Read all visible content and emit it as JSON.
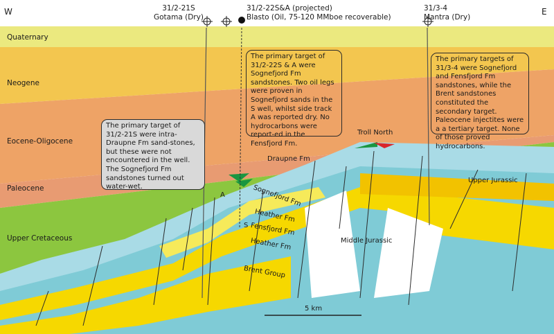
{
  "orientation": {
    "west": "W",
    "east": "E"
  },
  "stratigraphy": [
    {
      "label": "Quaternary",
      "color": "#ebe97f"
    },
    {
      "label": "Neogene",
      "color": "#f3c64f"
    },
    {
      "label": "Eocene-Oligocene",
      "color": "#eea366"
    },
    {
      "label": "Paleocene",
      "color": "#e9a070"
    },
    {
      "label": "Upper Cretaceous",
      "color": "#8cc63f"
    }
  ],
  "units": {
    "upper_jurassic": {
      "label": "Upper Jurassic",
      "color": "#a9dbe6"
    },
    "middle_jurassic": {
      "label": "Middle Jurassic"
    },
    "sognefjord": {
      "label": "Sognefjord Fm",
      "color": "#f6d800"
    },
    "heather_upper": {
      "label": "Heather Fm",
      "color": "#7fcbd6"
    },
    "fensfjord": {
      "label": "Fensfjord Fm"
    },
    "heather_lower": {
      "label": "Heather Fm"
    },
    "brent": {
      "label": "Brent Group"
    },
    "draupne": {
      "label": "Draupne Fm"
    },
    "troll_north": {
      "label": "Troll North"
    }
  },
  "hydrocarbon_colors": {
    "gas": "#d9262b",
    "oil": "#1a9641"
  },
  "wells": [
    {
      "name": "31/2-21S",
      "detail": "Gotama (Dry)",
      "symbol": "dry-well"
    },
    {
      "name": "31/2-22S&A (projected)",
      "detail": "Blasto (Oil, 75-120 MMboe recoverable)",
      "symbol": "oil-well"
    },
    {
      "name": "31/3-4",
      "detail": "Mantra (Dry)",
      "symbol": "dry-well"
    }
  ],
  "well_track_labels": {
    "track_a": "A",
    "track_s": "S"
  },
  "callouts": [
    {
      "text": "The primary target of 31/2-21S were intra-Draupne Fm sand-stones, but these were not encountered in the well. The Sognefjord Fm sandstones turned out water-wet."
    },
    {
      "text": "The primary target of 31/2-22S & A were Sognefjord Fm sandstones. Two oil legs were proven in Sognefjord sands in the S well, whilst side track A was reported dry. No hydrocarbons were report-ed in the Fensfjord Fm."
    },
    {
      "text": "The primary targets of 31/3-4 were Sognefjord and Fensfjord Fm sandstones, while the Brent sandstones constituted the secondary target. Paleocene injectites were a a tertiary target. None of those proved hydrocarbons."
    }
  ],
  "scale_bar": {
    "label": "5 km"
  }
}
